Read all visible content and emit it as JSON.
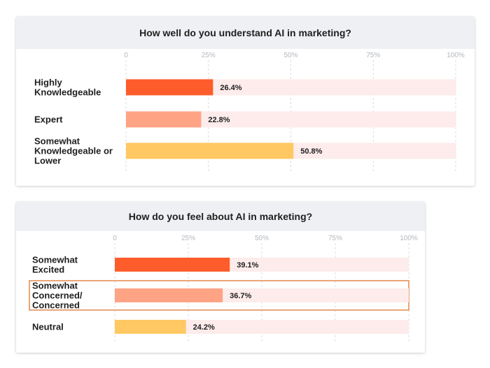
{
  "chart_data": [
    {
      "type": "bar",
      "orientation": "horizontal",
      "title": "How well do you understand AI in marketing?",
      "categories": [
        "Highly Knowledgeable",
        "Expert",
        "Somewhat Knowledgeable or Lower"
      ],
      "category_lines": [
        [
          "Highly",
          "Knowledgeable"
        ],
        [
          "Expert"
        ],
        [
          "Somewhat",
          "Knowledgeable or",
          "Lower"
        ]
      ],
      "values": [
        26.4,
        22.8,
        50.8
      ],
      "value_labels": [
        "26.4%",
        "22.8%",
        "50.8%"
      ],
      "colors": [
        "#ff5c2b",
        "#ffa385",
        "#ffc862"
      ],
      "track_color": "#fdeceb",
      "xlim": [
        0,
        100
      ],
      "ticks": [
        0,
        25,
        50,
        75,
        100
      ],
      "tick_labels": [
        "0",
        "25%",
        "50%",
        "75%",
        "100%"
      ],
      "grid": true,
      "highlighted": null
    },
    {
      "type": "bar",
      "orientation": "horizontal",
      "title": "How do you feel about AI in marketing?",
      "categories": [
        "Somewhat Excited",
        "Somewhat Concerned/ Concerned",
        "Neutral"
      ],
      "category_lines": [
        [
          "Somewhat",
          "Excited"
        ],
        [
          "Somewhat",
          "Concerned/",
          "Concerned"
        ],
        [
          "Neutral"
        ]
      ],
      "values": [
        39.1,
        36.7,
        24.2
      ],
      "value_labels": [
        "39.1%",
        "36.7%",
        "24.2%"
      ],
      "colors": [
        "#ff5c2b",
        "#ffa385",
        "#ffc862"
      ],
      "track_color": "#fdeceb",
      "xlim": [
        0,
        100
      ],
      "ticks": [
        0,
        25,
        50,
        75,
        100
      ],
      "tick_labels": [
        "0",
        "25%",
        "50%",
        "75%",
        "100%"
      ],
      "grid": true,
      "highlighted": 1,
      "highlight_color": "#e0762f"
    }
  ]
}
